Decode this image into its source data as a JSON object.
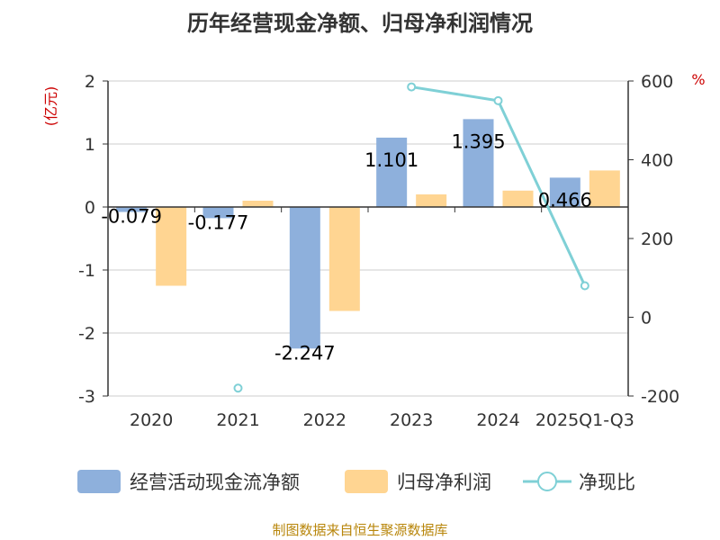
{
  "chart_data": {
    "type": "bar+line",
    "title": "历年经营现金净额、归母净利润情况",
    "categories": [
      "2020",
      "2021",
      "2022",
      "2023",
      "2024",
      "2025Q1-Q3"
    ],
    "y_left": {
      "label": "(亿元)",
      "ticks": [
        "2",
        "1",
        "0",
        "-1",
        "-2",
        "-3"
      ],
      "range": [
        -3,
        2
      ]
    },
    "y_right": {
      "label": "%",
      "ticks": [
        "600",
        "400",
        "200",
        "0",
        "-200"
      ],
      "range": [
        -200,
        600
      ]
    },
    "series": [
      {
        "name": "经营活动现金流净额",
        "type": "bar",
        "axis": "left",
        "color": "#8eb0dc",
        "values": [
          -0.079,
          -0.177,
          -2.247,
          1.101,
          1.395,
          0.466
        ],
        "labels": [
          "-0.079",
          "-0.177",
          "-2.247",
          "1.101",
          "1.395",
          "0.466"
        ]
      },
      {
        "name": "归母净利润",
        "type": "bar",
        "axis": "left",
        "color": "#ffd592",
        "values": [
          -1.25,
          0.1,
          -1.65,
          0.2,
          0.26,
          0.58
        ]
      },
      {
        "name": "净现比",
        "type": "line",
        "axis": "right",
        "color": "#7fd0d6",
        "values": [
          null,
          -180,
          null,
          585,
          550,
          80
        ]
      }
    ],
    "grid": true,
    "legend": "bottom"
  },
  "source": "制图数据来自恒生聚源数据库"
}
